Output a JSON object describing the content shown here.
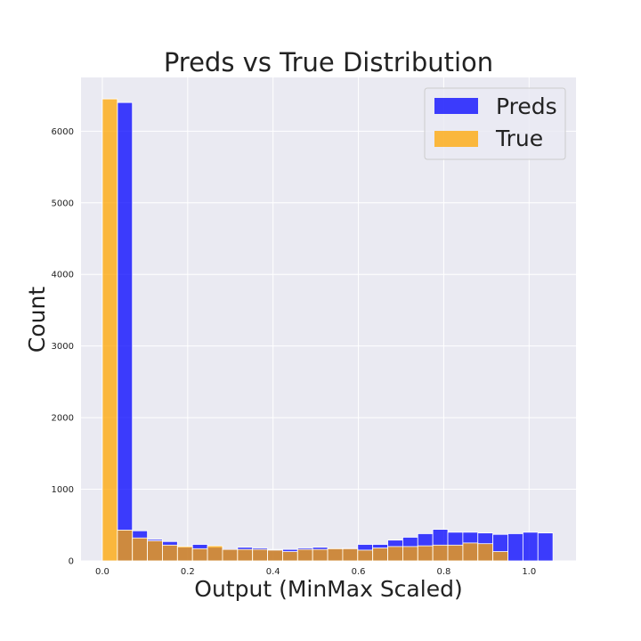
{
  "chart_data": {
    "type": "bar",
    "title": "Preds vs True Distribution",
    "xlabel": "Output (MinMax Scaled)",
    "ylabel": "Count",
    "xlim": [
      -0.05,
      1.11
    ],
    "ylim": [
      0,
      6750
    ],
    "xticks": [
      "0.0",
      "0.2",
      "0.4",
      "0.6",
      "0.8",
      "1.0"
    ],
    "xtick_values": [
      0.0,
      0.2,
      0.4,
      0.6,
      0.8,
      1.0
    ],
    "yticks": [
      "0",
      "1000",
      "2000",
      "3000",
      "4000",
      "5000",
      "6000"
    ],
    "ytick_values": [
      0,
      1000,
      2000,
      3000,
      4000,
      5000,
      6000
    ],
    "grid": true,
    "legend_position": "top-right",
    "series": [
      {
        "name": "Preds",
        "color": "#0000ff",
        "opacity": 0.75,
        "bin_start": 0.0,
        "bin_width": 0.0352,
        "values": [
          0,
          6400,
          420,
          300,
          270,
          190,
          230,
          190,
          170,
          190,
          180,
          160,
          160,
          180,
          190,
          170,
          180,
          230,
          230,
          290,
          330,
          380,
          440,
          400,
          400,
          390,
          370,
          380,
          400,
          390
        ]
      },
      {
        "name": "True",
        "color": "#ffa500",
        "opacity": 0.75,
        "bin_start": 0.0,
        "bin_width": 0.0352,
        "values": [
          6450,
          430,
          320,
          280,
          220,
          200,
          170,
          210,
          160,
          160,
          160,
          150,
          130,
          160,
          160,
          170,
          170,
          150,
          180,
          200,
          200,
          210,
          220,
          220,
          250,
          240,
          130,
          0,
          0,
          0
        ]
      }
    ]
  }
}
